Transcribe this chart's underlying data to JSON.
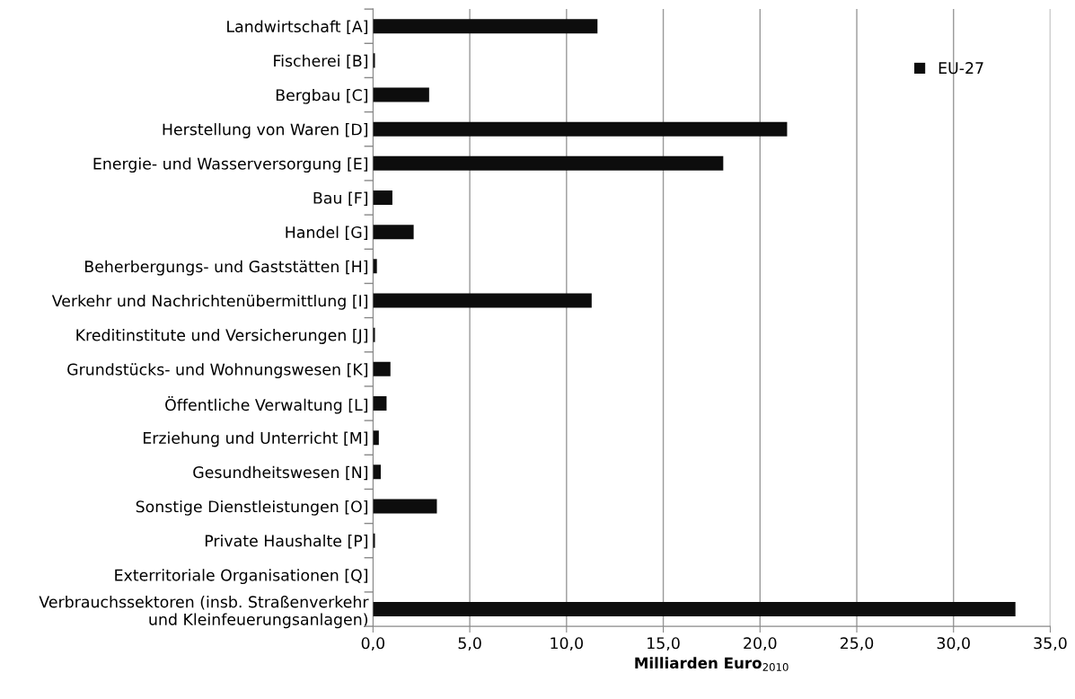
{
  "chart_data": {
    "type": "bar",
    "orientation": "horizontal",
    "categories": [
      "Landwirtschaft [A]",
      "Fischerei [B]",
      "Bergbau [C]",
      "Herstellung von Waren [D]",
      "Energie- und Wasserversorgung [E]",
      "Bau [F]",
      "Handel [G]",
      "Beherbergungs- und Gaststätten [H]",
      "Verkehr und Nachrichtenübermittlung [I]",
      "Kreditinstitute und Versicherungen [J]",
      "Grundstücks- und Wohnungswesen [K]",
      "Öffentliche Verwaltung [L]",
      "Erziehung und Unterricht [M]",
      "Gesundheitswesen [N]",
      "Sonstige Dienstleistungen [O]",
      "Private Haushalte [P]",
      "Exterritoriale Organisationen [Q]",
      "Verbrauchssektoren (insb. Straßenverkehr\nund Kleinfeuerungsanlagen)"
    ],
    "series": [
      {
        "name": "EU-27",
        "color": "#0d0d0d",
        "values": [
          11.6,
          0.1,
          2.9,
          21.4,
          18.1,
          1.0,
          2.1,
          0.2,
          11.3,
          0.1,
          0.9,
          0.7,
          0.3,
          0.4,
          3.3,
          0.1,
          0.0,
          33.2
        ]
      }
    ],
    "xlabel": "Milliarden Euro$_{2010}$",
    "xlim": [
      0,
      35
    ],
    "xticks": [
      {
        "value": 0,
        "label": "0,0"
      },
      {
        "value": 5,
        "label": "5,0"
      },
      {
        "value": 10,
        "label": "10,0"
      },
      {
        "value": 15,
        "label": "15,0"
      },
      {
        "value": 20,
        "label": "20,0"
      },
      {
        "value": 25,
        "label": "25,0"
      },
      {
        "value": 30,
        "label": "30,0"
      },
      {
        "value": 35,
        "label": "35,0"
      }
    ],
    "grid": "x",
    "legend": "top right"
  }
}
